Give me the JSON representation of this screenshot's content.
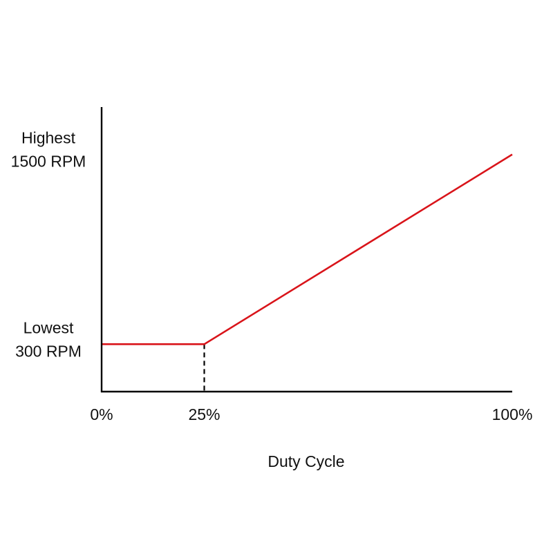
{
  "chart_data": {
    "type": "line",
    "title": "",
    "xlabel": "Duty Cycle",
    "ylabel": "",
    "xlim": [
      0,
      100
    ],
    "ylim": [
      0,
      1800
    ],
    "x_unit": "%",
    "y_unit": "RPM",
    "grid": false,
    "legend": "none",
    "x_ticks": [
      {
        "value": 0,
        "label": "0%"
      },
      {
        "value": 25,
        "label": "25%"
      },
      {
        "value": 100,
        "label": "100%"
      }
    ],
    "y_ticks": [
      {
        "value": 300,
        "lines": [
          "Lowest",
          "300 RPM"
        ]
      },
      {
        "value": 1500,
        "lines": [
          "Highest",
          "1500 RPM"
        ]
      }
    ],
    "series": [
      {
        "color": "#d9141a",
        "points": [
          {
            "x": 0,
            "y": 300
          },
          {
            "x": 25,
            "y": 300
          },
          {
            "x": 100,
            "y": 1500
          }
        ]
      }
    ],
    "guides": [
      {
        "x": 25,
        "from_y": 0,
        "to_y": 300,
        "style": "dashed",
        "color": "#000000"
      }
    ],
    "axis_color": "#000000"
  }
}
